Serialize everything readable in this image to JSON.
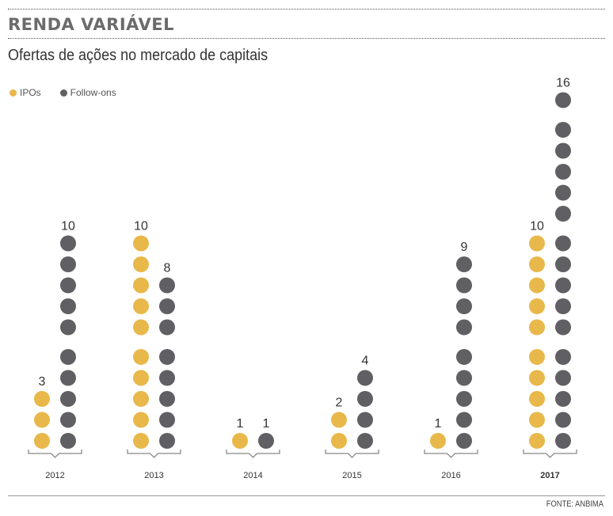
{
  "header": {
    "section": "RENDA VARIÁVEL",
    "title": "Ofertas de ações no mercado de capitais"
  },
  "source": "FONTE: ANBIMA",
  "colors": {
    "ipo": "#e8b84a",
    "followon": "#606064",
    "text": "#333333"
  },
  "chart_data": {
    "type": "bar",
    "subtype": "dot-pictogram",
    "title": "Ofertas de ações no mercado de capitais",
    "xlabel": "",
    "ylabel": "",
    "categories": [
      "2012",
      "2013",
      "2014",
      "2015",
      "2016",
      "2017"
    ],
    "highlight_category": "2017",
    "series": [
      {
        "name": "IPOs",
        "values": [
          3,
          10,
          1,
          2,
          1,
          10
        ]
      },
      {
        "name": "Follow-ons",
        "values": [
          10,
          8,
          1,
          4,
          9,
          16
        ]
      }
    ],
    "dot_group_size": 5,
    "legend": {
      "position": "top-left",
      "entries": [
        "IPOs",
        "Follow-ons"
      ]
    },
    "grid": false
  }
}
